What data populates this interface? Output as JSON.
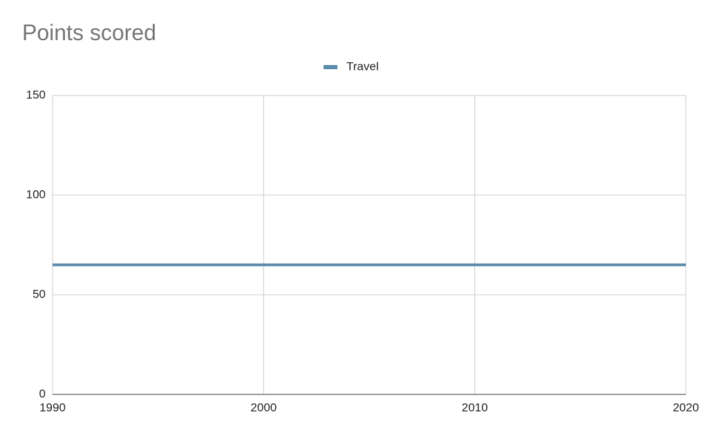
{
  "chart_data": {
    "type": "line",
    "title": "Points scored",
    "x": [
      1990,
      2020
    ],
    "series": [
      {
        "name": "Travel",
        "color": "#5b8bab",
        "values": [
          65,
          65
        ]
      }
    ],
    "xlim": [
      1990,
      2020
    ],
    "xticks": [
      1990,
      2000,
      2010,
      2020
    ],
    "ylim": [
      0,
      150
    ],
    "yticks": [
      0,
      50,
      100,
      150
    ],
    "grid": true,
    "legend": "top"
  }
}
